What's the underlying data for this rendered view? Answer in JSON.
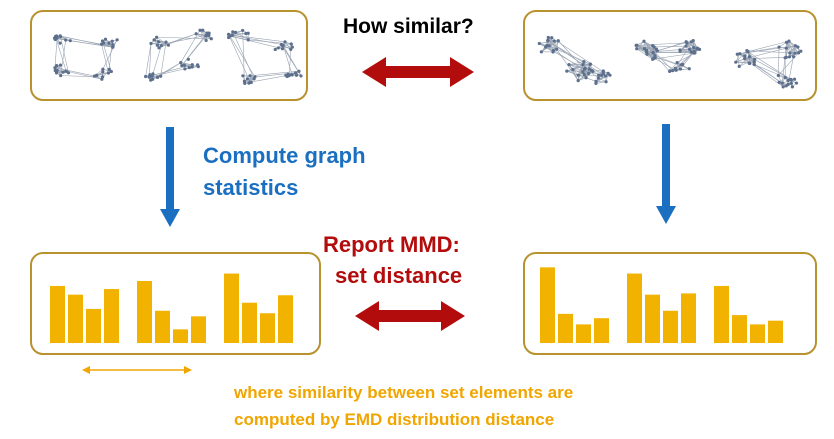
{
  "labels": {
    "question": "How similar?",
    "compute_line1": "Compute graph",
    "compute_line2": "statistics",
    "report_line1": "Report MMD:",
    "report_line2": "set distance",
    "footnote_line1": "where similarity between set elements are",
    "footnote_line2": "computed by EMD distribution distance"
  },
  "colors": {
    "frame": "#b8922e",
    "bars": "#f2b200",
    "blue": "#1a6fc1",
    "red": "#b30c0c",
    "footnote": "#f0a500",
    "question": "#000000",
    "graph_node": "#5c6f8c",
    "graph_edge": "#9aa4b2"
  },
  "histograms": {
    "left": [
      [
        0.92,
        0.78,
        0.55,
        0.87
      ],
      [
        1.0,
        0.52,
        0.22,
        0.43
      ],
      [
        1.12,
        0.65,
        0.48,
        0.77
      ]
    ],
    "right": [
      [
        1.22,
        0.47,
        0.3,
        0.4
      ],
      [
        1.12,
        0.78,
        0.52,
        0.8
      ],
      [
        0.92,
        0.45,
        0.3,
        0.36
      ]
    ]
  }
}
